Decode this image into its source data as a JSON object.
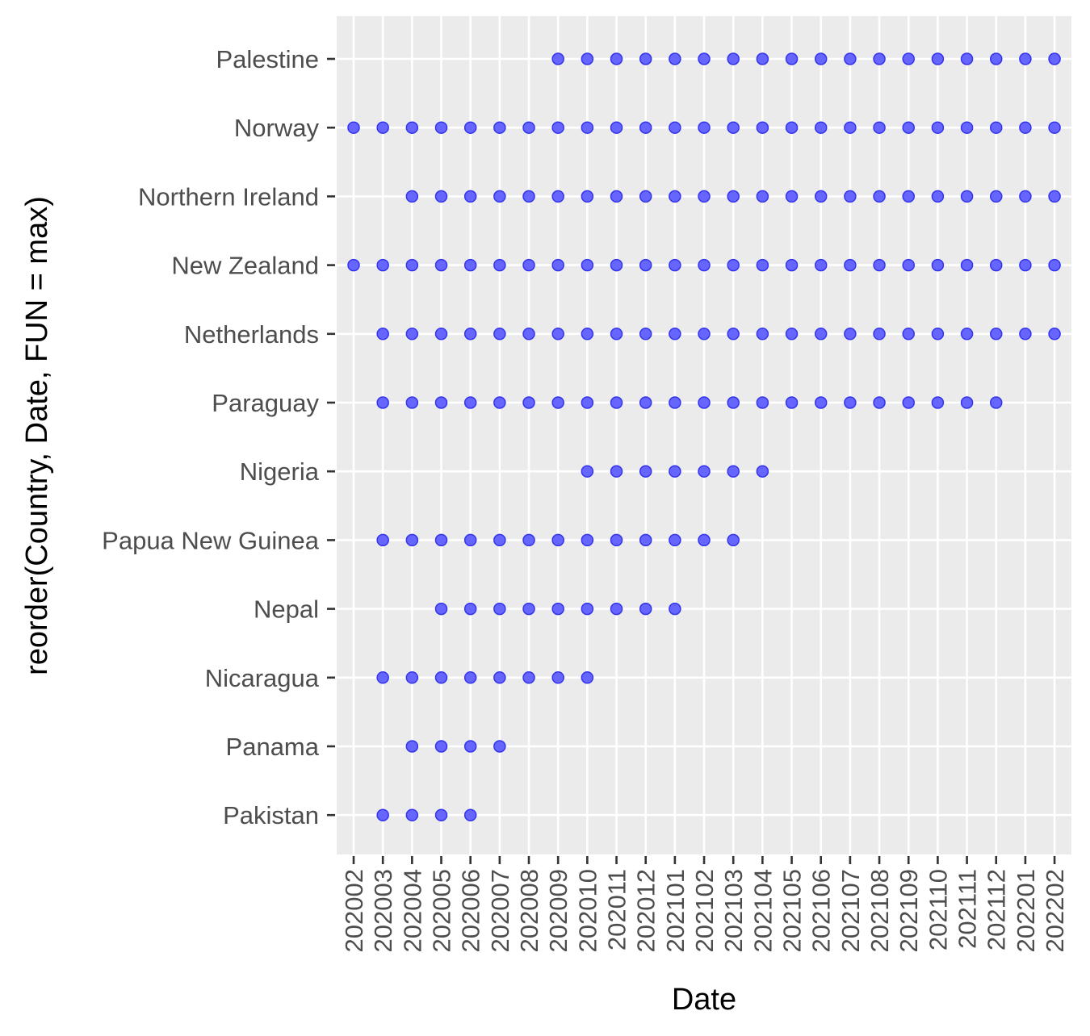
{
  "chart_data": {
    "type": "scatter",
    "title": "",
    "xlabel": "Date",
    "ylabel": "reorder(Country, Date, FUN = max)",
    "x": [
      "202002",
      "202003",
      "202004",
      "202005",
      "202006",
      "202007",
      "202008",
      "202009",
      "202010",
      "202011",
      "202012",
      "202101",
      "202102",
      "202103",
      "202104",
      "202105",
      "202106",
      "202107",
      "202108",
      "202109",
      "202110",
      "202111",
      "202112",
      "202201",
      "202202"
    ],
    "categories": [
      "Pakistan",
      "Panama",
      "Nicaragua",
      "Nepal",
      "Papua New Guinea",
      "Nigeria",
      "Paraguay",
      "Netherlands",
      "New Zealand",
      "Northern Ireland",
      "Norway",
      "Palestine"
    ],
    "series": [
      {
        "values": {
          "Pakistan": [
            "202003",
            "202004",
            "202005",
            "202006"
          ],
          "Panama": [
            "202004",
            "202005",
            "202006",
            "202007"
          ],
          "Nicaragua": [
            "202003",
            "202004",
            "202005",
            "202006",
            "202007",
            "202008",
            "202009",
            "202010"
          ],
          "Nepal": [
            "202005",
            "202006",
            "202007",
            "202008",
            "202009",
            "202010",
            "202011",
            "202012",
            "202101"
          ],
          "Papua New Guinea": [
            "202003",
            "202004",
            "202005",
            "202006",
            "202007",
            "202008",
            "202009",
            "202010",
            "202011",
            "202012",
            "202101",
            "202102",
            "202103"
          ],
          "Nigeria": [
            "202010",
            "202011",
            "202012",
            "202101",
            "202102",
            "202103",
            "202104"
          ],
          "Paraguay": [
            "202003",
            "202004",
            "202005",
            "202006",
            "202007",
            "202008",
            "202009",
            "202010",
            "202011",
            "202012",
            "202101",
            "202102",
            "202103",
            "202104",
            "202105",
            "202106",
            "202107",
            "202108",
            "202109",
            "202110",
            "202111",
            "202112"
          ],
          "Netherlands": [
            "202003",
            "202004",
            "202005",
            "202006",
            "202007",
            "202008",
            "202009",
            "202010",
            "202011",
            "202012",
            "202101",
            "202102",
            "202103",
            "202104",
            "202105",
            "202106",
            "202107",
            "202108",
            "202109",
            "202110",
            "202111",
            "202112",
            "202201",
            "202202"
          ],
          "New Zealand": [
            "202002",
            "202003",
            "202004",
            "202005",
            "202006",
            "202007",
            "202008",
            "202009",
            "202010",
            "202011",
            "202012",
            "202101",
            "202102",
            "202103",
            "202104",
            "202105",
            "202106",
            "202107",
            "202108",
            "202109",
            "202110",
            "202111",
            "202112",
            "202201",
            "202202"
          ],
          "Northern Ireland": [
            "202004",
            "202005",
            "202006",
            "202007",
            "202008",
            "202009",
            "202010",
            "202011",
            "202012",
            "202101",
            "202102",
            "202103",
            "202104",
            "202105",
            "202106",
            "202107",
            "202108",
            "202109",
            "202110",
            "202111",
            "202112",
            "202201",
            "202202"
          ],
          "Norway": [
            "202002",
            "202003",
            "202004",
            "202005",
            "202006",
            "202007",
            "202008",
            "202009",
            "202010",
            "202011",
            "202012",
            "202101",
            "202102",
            "202103",
            "202104",
            "202105",
            "202106",
            "202107",
            "202108",
            "202109",
            "202110",
            "202111",
            "202112",
            "202201",
            "202202"
          ],
          "Palestine": [
            "202009",
            "202010",
            "202011",
            "202012",
            "202101",
            "202102",
            "202103",
            "202104",
            "202105",
            "202106",
            "202107",
            "202108",
            "202109",
            "202110",
            "202111",
            "202112",
            "202201",
            "202202"
          ]
        }
      }
    ],
    "point_color": "#6666ff",
    "point_stroke": "#3333ee",
    "panel_background": "#ebebeb",
    "grid": true,
    "legend": "none"
  }
}
